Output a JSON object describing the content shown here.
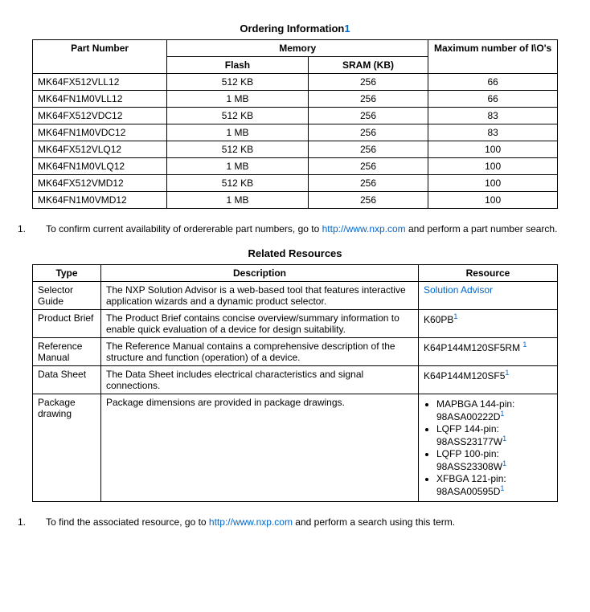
{
  "ordering": {
    "title": "Ordering Information",
    "title_ref": "1",
    "headers": {
      "part": "Part Number",
      "memory": "Memory",
      "flash": "Flash",
      "sram": "SRAM (KB)",
      "io": "Maximum number of I\\O's"
    },
    "rows": [
      {
        "part": "MK64FX512VLL12",
        "flash": "512 KB",
        "sram": "256",
        "io": "66"
      },
      {
        "part": "MK64FN1M0VLL12",
        "flash": "1 MB",
        "sram": "256",
        "io": "66"
      },
      {
        "part": "MK64FX512VDC12",
        "flash": "512 KB",
        "sram": "256",
        "io": "83"
      },
      {
        "part": "MK64FN1M0VDC12",
        "flash": "1 MB",
        "sram": "256",
        "io": "83"
      },
      {
        "part": "MK64FX512VLQ12",
        "flash": "512 KB",
        "sram": "256",
        "io": "100"
      },
      {
        "part": "MK64FN1M0VLQ12",
        "flash": "1 MB",
        "sram": "256",
        "io": "100"
      },
      {
        "part": "MK64FX512VMD12",
        "flash": "512 KB",
        "sram": "256",
        "io": "100"
      },
      {
        "part": "MK64FN1M0VMD12",
        "flash": "1 MB",
        "sram": "256",
        "io": "100"
      }
    ],
    "col_widths": {
      "part": "160px",
      "flash": "180px",
      "sram": "150px",
      "io": "160px"
    },
    "footnote_num": "1.",
    "footnote_pre": "To confirm current availability of ordererable part numbers, go to ",
    "footnote_link": "http://www.nxp.com",
    "footnote_post": " and perform a part number search."
  },
  "resources": {
    "title": "Related Resources",
    "headers": {
      "type": "Type",
      "desc": "Description",
      "res": "Resource"
    },
    "rows": [
      {
        "type": "Selector Guide",
        "desc": "The NXP Solution Advisor is a web-based tool that features interactive application wizards and a dynamic product selector.",
        "res_link": "Solution Advisor",
        "res_text": "",
        "res_sup": ""
      },
      {
        "type": "Product Brief",
        "desc": "The Product Brief contains concise overview/summary information to enable quick evaluation of a device for design suitability.",
        "res_link": "",
        "res_text": "K60PB",
        "res_sup": "1"
      },
      {
        "type": "Reference Manual",
        "desc": "The Reference Manual contains a comprehensive description of the structure and function (operation) of a device.",
        "res_link": "",
        "res_text": "K64P144M120SF5RM ",
        "res_sup": "1"
      },
      {
        "type": "Data Sheet",
        "desc": "The Data Sheet includes electrical characteristics and signal connections.",
        "res_link": "",
        "res_text": "K64P144M120SF5",
        "res_sup": "1"
      },
      {
        "type": "Package drawing",
        "desc": "Package dimensions are provided in package drawings.",
        "res_link": "",
        "res_text": "",
        "res_sup": "",
        "packages": [
          {
            "label": "MAPBGA 144-pin:",
            "code": "98ASA00222D",
            "sup": "1"
          },
          {
            "label": "LQFP 144-pin:",
            "code": "98ASS23177W",
            "sup": "1"
          },
          {
            "label": "LQFP 100-pin:",
            "code": "98ASS23308W",
            "sup": "1"
          },
          {
            "label": "XFBGA 121-pin:",
            "code": "98ASA00595D",
            "sup": "1"
          }
        ]
      }
    ],
    "footnote_num": "1.",
    "footnote_pre": "To find the associated resource, go to ",
    "footnote_link": "http://www.nxp.com",
    "footnote_post": " and perform a search using this term."
  }
}
